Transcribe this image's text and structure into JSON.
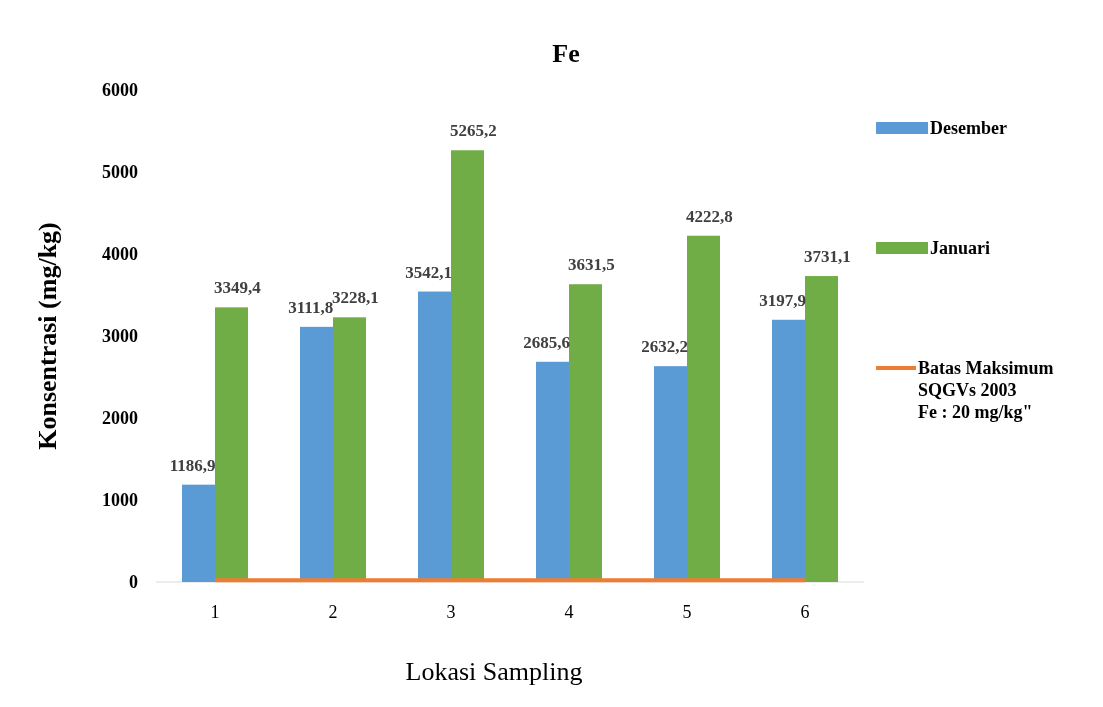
{
  "chart_data": {
    "type": "bar",
    "title": "Fe",
    "xlabel": "Lokasi Sampling",
    "ylabel": "Konsentrasi (mg/kg)",
    "categories": [
      "1",
      "2",
      "3",
      "4",
      "5",
      "6"
    ],
    "series": [
      {
        "name": "Desember",
        "color": "#5b9bd5",
        "values": [
          1186.9,
          3111.8,
          3542.1,
          2685.6,
          2632.2,
          3197.9
        ],
        "value_labels": [
          "1186,9",
          "3111,8",
          "3542,1",
          "2685,6",
          "2632,2",
          "3197,9"
        ]
      },
      {
        "name": "Januari",
        "color": "#70ad47",
        "values": [
          3349.4,
          3228.1,
          5265.2,
          3631.5,
          4222.8,
          3731.1
        ],
        "value_labels": [
          "3349,4",
          "3228,1",
          "5265,2",
          "3631,5",
          "4222,8",
          "3731,1"
        ]
      },
      {
        "name": "Batas Maksimum\nSQGVs 2003\nFe : 20 mg/kg\"",
        "type": "line",
        "color": "#ed7d31",
        "values": [
          20,
          20,
          20,
          20,
          20,
          20
        ]
      }
    ],
    "ylim": [
      0,
      6000
    ],
    "yticks": [
      0,
      1000,
      2000,
      3000,
      4000,
      5000,
      6000
    ],
    "grid": false,
    "legend": "right"
  }
}
